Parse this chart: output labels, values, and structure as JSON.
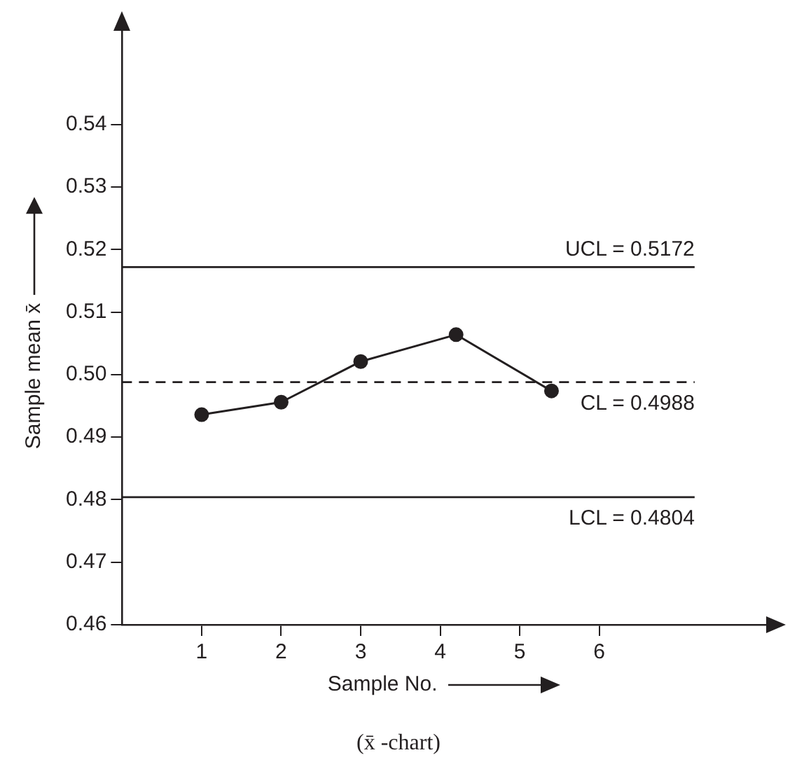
{
  "chart_data": {
    "type": "line",
    "xlabel": "Sample No.",
    "ylabel": "Sample mean x̄",
    "x": [
      1,
      2,
      3,
      4.2,
      5.4
    ],
    "series": [
      {
        "color": "#231f20",
        "values": [
          0.4936,
          0.4956,
          0.5021,
          0.5064,
          0.4974
        ]
      }
    ],
    "xlim": [
      0,
      8.1
    ],
    "xticks": [
      1,
      2,
      3,
      4,
      5,
      6
    ],
    "ylim": [
      0.46,
      0.555
    ],
    "yticks": [
      0.46,
      0.47,
      0.48,
      0.49,
      {
        "value": 0.5,
        "label": "0.50"
      },
      0.51,
      0.52,
      0.53,
      0.54
    ],
    "ref_lines": [
      {
        "axis": "y",
        "value": 0.5172,
        "label": "UCL = 0.5172",
        "line_style": "solid"
      },
      {
        "axis": "y",
        "value": 0.4988,
        "label": "CL = 0.4988",
        "line_style": "dashed"
      },
      {
        "axis": "y",
        "value": 0.4804,
        "label": "LCL = 0.4804",
        "line_style": "solid"
      }
    ],
    "annotations": [
      "(x̄ -chart)"
    ],
    "grid": false,
    "legend": false,
    "marker": "circle",
    "line_style": "solid"
  }
}
